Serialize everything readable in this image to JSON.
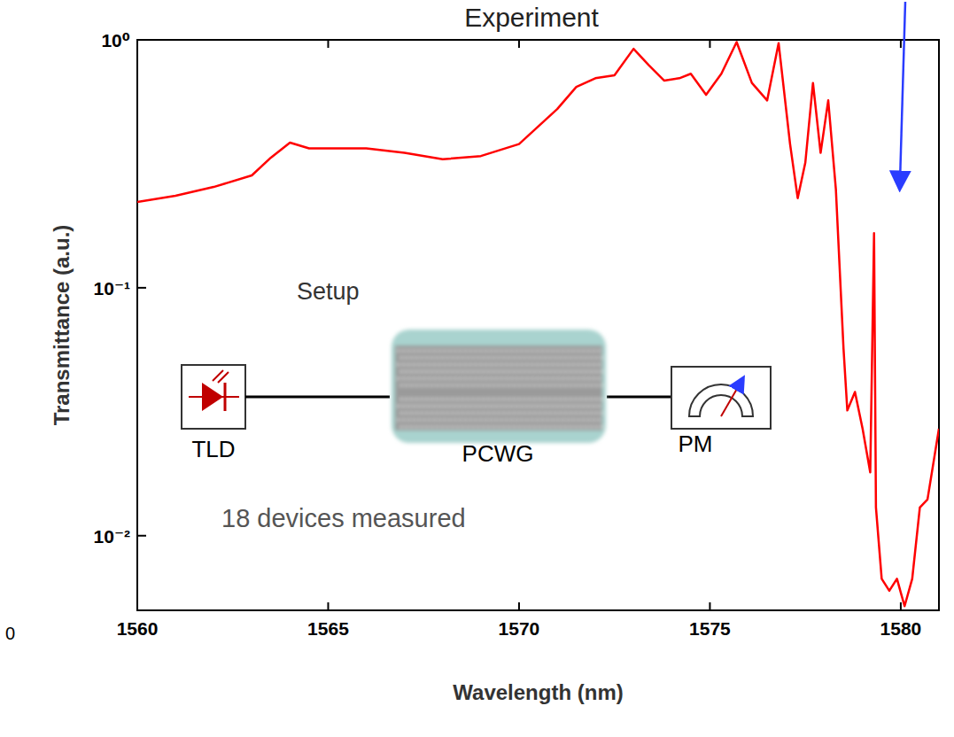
{
  "chart_data": {
    "type": "line",
    "title": "Experiment",
    "x_label": "Wavelength (nm)",
    "y_label": "Transmittance (a.u.)",
    "color": "#ff0000",
    "log": "y",
    "xlim": [
      1560,
      1581
    ],
    "ylim": [
      0.005,
      1
    ],
    "xticks": [
      1560,
      1565,
      1570,
      1575,
      1580
    ],
    "yticks": [
      {
        "value": 1,
        "label": "10⁰"
      },
      {
        "value": 0.1,
        "label": "10⁻¹"
      },
      {
        "value": 0.01,
        "label": "10⁻²"
      }
    ],
    "x": [
      1560,
      1561,
      1562,
      1563,
      1563.5,
      1564,
      1564.5,
      1565,
      1566,
      1567,
      1568,
      1569,
      1570,
      1570.5,
      1571,
      1571.5,
      1572,
      1572.5,
      1573,
      1573.4,
      1573.8,
      1574.2,
      1574.5,
      1574.9,
      1575.3,
      1575.7,
      1576.1,
      1576.5,
      1576.8,
      1577.1,
      1577.3,
      1577.5,
      1577.7,
      1577.9,
      1578.1,
      1578.3,
      1578.5,
      1578.6,
      1578.8,
      1579.0,
      1579.2,
      1579.3,
      1579.35,
      1579.5,
      1579.7,
      1579.9,
      1580.1,
      1580.3,
      1580.5,
      1580.7,
      1581
    ],
    "values": [
      0.222,
      0.235,
      0.255,
      0.284,
      0.335,
      0.385,
      0.365,
      0.365,
      0.365,
      0.35,
      0.33,
      0.34,
      0.38,
      0.447,
      0.526,
      0.646,
      0.7,
      0.72,
      0.92,
      0.79,
      0.685,
      0.7,
      0.73,
      0.6,
      0.73,
      0.98,
      0.67,
      0.57,
      0.97,
      0.38,
      0.23,
      0.32,
      0.67,
      0.35,
      0.57,
      0.25,
      0.057,
      0.032,
      0.038,
      0.027,
      0.018,
      0.166,
      0.013,
      0.0067,
      0.006,
      0.0067,
      0.0052,
      0.0067,
      0.013,
      0.014,
      0.027
    ],
    "annotations": {
      "setup_title": "Setup",
      "source": "TLD",
      "device": "PCWG",
      "meter": "PM",
      "note": "18 devices measured",
      "fragment_label": "0"
    }
  }
}
